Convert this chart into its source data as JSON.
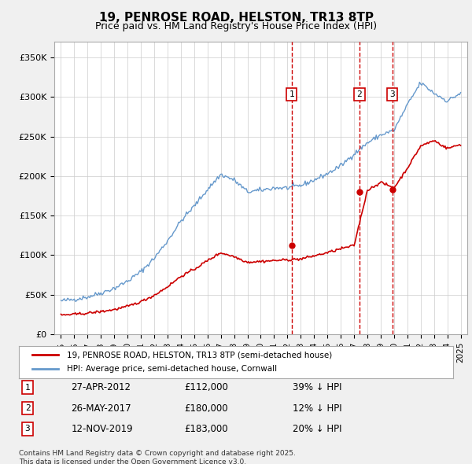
{
  "title": "19, PENROSE ROAD, HELSTON, TR13 8TP",
  "subtitle": "Price paid vs. HM Land Registry's House Price Index (HPI)",
  "background_color": "#f0f0f0",
  "plot_bg_color": "#ffffff",
  "hpi_line_color": "#6699cc",
  "price_line_color": "#cc0000",
  "sale_marker_color": "#cc0000",
  "sale_dot_color": "#cc0000",
  "vline_color": "#cc0000",
  "grid_color": "#cccccc",
  "ylim": [
    0,
    370000
  ],
  "yticks": [
    0,
    50000,
    100000,
    150000,
    200000,
    250000,
    300000,
    350000
  ],
  "ytick_labels": [
    "£0",
    "£50K",
    "£100K",
    "£150K",
    "£200K",
    "£250K",
    "£300K",
    "£350K"
  ],
  "xlim_start": 1994.5,
  "xlim_end": 2025.5,
  "xlabel_years": [
    1995,
    1996,
    1997,
    1998,
    1999,
    2000,
    2001,
    2002,
    2003,
    2004,
    2005,
    2006,
    2007,
    2008,
    2009,
    2010,
    2011,
    2012,
    2013,
    2014,
    2015,
    2016,
    2017,
    2018,
    2019,
    2020,
    2021,
    2022,
    2023,
    2024,
    2025
  ],
  "sale_dates": [
    2012.32,
    2017.4,
    2019.87
  ],
  "sale_prices": [
    112000,
    180000,
    183000
  ],
  "sale_labels": [
    "1",
    "2",
    "3"
  ],
  "sale_info": [
    {
      "num": "1",
      "date": "27-APR-2012",
      "price": "£112,000",
      "note": "39% ↓ HPI"
    },
    {
      "num": "2",
      "date": "26-MAY-2017",
      "price": "£180,000",
      "note": "12% ↓ HPI"
    },
    {
      "num": "3",
      "date": "12-NOV-2019",
      "price": "£183,000",
      "note": "20% ↓ HPI"
    }
  ],
  "legend_entries": [
    {
      "label": "19, PENROSE ROAD, HELSTON, TR13 8TP (semi-detached house)",
      "color": "#cc0000"
    },
    {
      "label": "HPI: Average price, semi-detached house, Cornwall",
      "color": "#6699cc"
    }
  ],
  "footer": "Contains HM Land Registry data © Crown copyright and database right 2025.\nThis data is licensed under the Open Government Licence v3.0.",
  "hpi_base_value": 42000,
  "price_base_value": 24000
}
